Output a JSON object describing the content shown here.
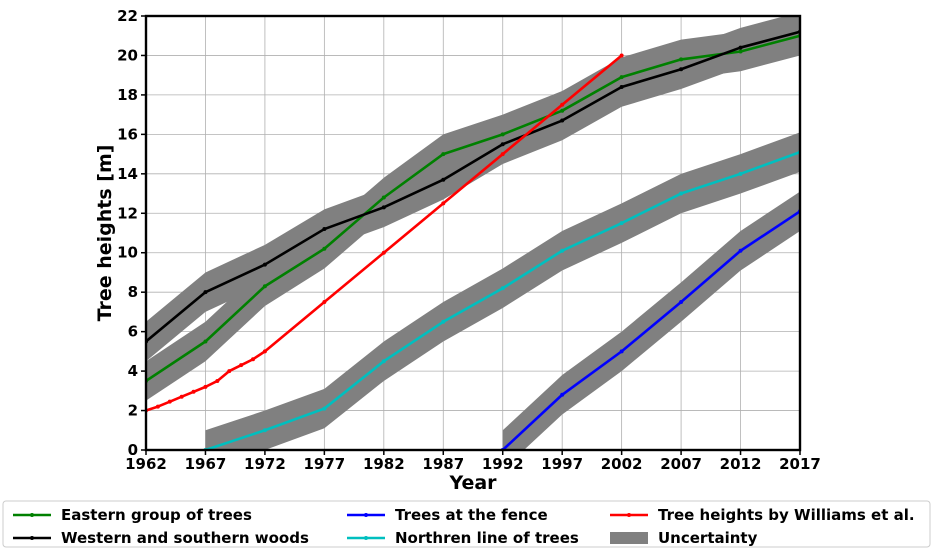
{
  "chart_data": {
    "type": "line",
    "title": "",
    "xlabel": "Year",
    "ylabel": "Tree heights [m]",
    "xlim": [
      1962,
      2017
    ],
    "ylim": [
      0,
      22
    ],
    "grid": true,
    "legend_placement": "bottom",
    "xticks": [
      1962,
      1967,
      1972,
      1977,
      1982,
      1987,
      1992,
      1997,
      2002,
      2007,
      2012,
      2017
    ],
    "yticks": [
      0,
      2,
      4,
      6,
      8,
      10,
      12,
      14,
      16,
      18,
      20,
      22
    ],
    "band_halfwidth": 1.0,
    "uncertainty": {
      "name": "Uncertainty",
      "color": "#808080"
    },
    "series": [
      {
        "name": "Eastern group of trees",
        "color": "#008000",
        "x": [
          1962,
          1967,
          1972,
          1977,
          1982,
          1987,
          1992,
          1997,
          2002,
          2007,
          2012,
          2017
        ],
        "y": [
          3.5,
          5.5,
          8.3,
          10.2,
          12.8,
          15.0,
          16.0,
          17.2,
          18.9,
          19.8,
          20.2,
          21.0
        ],
        "band": true
      },
      {
        "name": "Western and southern woods",
        "color": "#000000",
        "x": [
          1962,
          1967,
          1972,
          1977,
          1982,
          1987,
          1992,
          1997,
          2002,
          2007,
          2012,
          2017
        ],
        "y": [
          5.5,
          8.0,
          9.4,
          11.2,
          12.3,
          13.7,
          15.5,
          16.7,
          18.4,
          19.3,
          20.4,
          21.2
        ],
        "band": true
      },
      {
        "name": "Trees at the fence",
        "color": "#0000ff",
        "x": [
          1992,
          1997,
          2002,
          2007,
          2012,
          2017
        ],
        "y": [
          0.0,
          2.8,
          5.0,
          7.5,
          10.1,
          12.1
        ],
        "band": true
      },
      {
        "name": "Northren line of trees",
        "color": "#00bfbf",
        "x": [
          1967,
          1972,
          1977,
          1982,
          1987,
          1992,
          1997,
          2002,
          2007,
          2012,
          2017
        ],
        "y": [
          0.0,
          1.0,
          2.1,
          4.5,
          6.5,
          8.2,
          10.1,
          11.5,
          13.0,
          14.0,
          15.1
        ],
        "band": true
      },
      {
        "name": "Tree heights by Williams et al.",
        "color": "#ff0000",
        "x": [
          1962,
          1963,
          1964,
          1965,
          1966,
          1967,
          1968,
          1969,
          1970,
          1971,
          1972,
          1977,
          1982,
          1987,
          1992,
          1997,
          2002
        ],
        "y": [
          2.0,
          2.2,
          2.45,
          2.7,
          2.95,
          3.2,
          3.5,
          4.0,
          4.3,
          4.6,
          5.0,
          7.5,
          10.0,
          12.5,
          15.0,
          17.5,
          20.0
        ],
        "band": false
      }
    ],
    "legend_order": [
      "Eastern group of trees",
      "Western and southern woods",
      "Trees at the fence",
      "Northren line of trees",
      "Tree heights by Williams et al.",
      "Uncertainty"
    ]
  }
}
